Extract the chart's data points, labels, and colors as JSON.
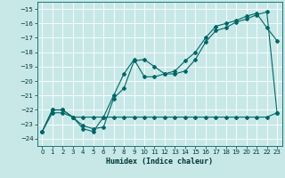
{
  "xlabel": "Humidex (Indice chaleur)",
  "ylabel": "",
  "bg_color": "#c8e8e8",
  "grid_color": "#ffffff",
  "line_color": "#006666",
  "xlim": [
    -0.5,
    23.5
  ],
  "ylim": [
    -24.5,
    -14.5
  ],
  "xticks": [
    0,
    1,
    2,
    3,
    4,
    5,
    6,
    7,
    8,
    9,
    10,
    11,
    12,
    13,
    14,
    15,
    16,
    17,
    18,
    19,
    20,
    21,
    22,
    23
  ],
  "yticks": [
    -15,
    -16,
    -17,
    -18,
    -19,
    -20,
    -21,
    -22,
    -23,
    -24
  ],
  "line1_x": [
    0,
    1,
    2,
    3,
    4,
    5,
    6,
    7,
    8,
    9,
    10,
    11,
    12,
    13,
    14,
    15,
    16,
    17,
    18,
    19,
    20,
    21,
    22,
    23
  ],
  "line1_y": [
    -23.5,
    -22.0,
    -22.0,
    -22.5,
    -23.1,
    -23.3,
    -23.2,
    -21.2,
    -20.5,
    -18.6,
    -18.5,
    -19.0,
    -19.5,
    -19.3,
    -18.6,
    -18.0,
    -17.0,
    -16.2,
    -16.0,
    -15.8,
    -15.5,
    -15.3,
    -16.3,
    -17.2
  ],
  "line2_x": [
    0,
    1,
    2,
    3,
    4,
    5,
    6,
    7,
    8,
    9,
    10,
    11,
    12,
    13,
    14,
    15,
    16,
    17,
    18,
    19,
    20,
    21,
    22,
    23
  ],
  "line2_y": [
    -23.5,
    -22.0,
    -22.0,
    -22.5,
    -23.3,
    -23.5,
    -22.5,
    -21.0,
    -19.5,
    -18.5,
    -19.7,
    -19.7,
    -19.5,
    -19.5,
    -19.3,
    -18.5,
    -17.3,
    -16.5,
    -16.3,
    -15.9,
    -15.7,
    -15.4,
    -15.2,
    -22.2
  ],
  "line3_x": [
    0,
    1,
    2,
    3,
    4,
    5,
    6,
    7,
    8,
    9,
    10,
    11,
    12,
    13,
    14,
    15,
    16,
    17,
    18,
    19,
    20,
    21,
    22,
    23
  ],
  "line3_y": [
    -23.5,
    -22.2,
    -22.2,
    -22.5,
    -22.5,
    -22.5,
    -22.5,
    -22.5,
    -22.5,
    -22.5,
    -22.5,
    -22.5,
    -22.5,
    -22.5,
    -22.5,
    -22.5,
    -22.5,
    -22.5,
    -22.5,
    -22.5,
    -22.5,
    -22.5,
    -22.5,
    -22.2
  ]
}
